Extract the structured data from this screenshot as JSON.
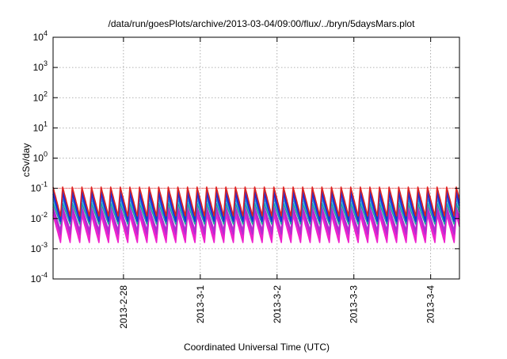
{
  "chart_data": {
    "type": "line",
    "title": "/data/run/goesPlots/archive/2013-03-04/09:00/flux/../bryn/5daysMars.plot",
    "xlabel": "Coordinated Universal Time (UTC)",
    "ylabel": "cSv/day",
    "scale": {
      "y": "log"
    },
    "grid": true,
    "x_range_days": [
      "2013-02-27T02:00",
      "2013-03-04T09:00"
    ],
    "ylim": [
      0.0001,
      10000
    ],
    "x_ticks": [
      {
        "label": "2013-2-28",
        "date": "2013-02-28"
      },
      {
        "label": "2013-3-1",
        "date": "2013-03-01"
      },
      {
        "label": "2013-3-2",
        "date": "2013-03-02"
      },
      {
        "label": "2013-3-3",
        "date": "2013-03-03"
      },
      {
        "label": "2013-3-4",
        "date": "2013-03-04"
      }
    ],
    "y_ticks": [
      {
        "base": "10",
        "exp": "-4",
        "value": 0.0001
      },
      {
        "base": "10",
        "exp": "-3",
        "value": 0.001
      },
      {
        "base": "10",
        "exp": "-2",
        "value": 0.01
      },
      {
        "base": "10",
        "exp": "-1",
        "value": 0.1
      },
      {
        "base": "10",
        "exp": "0",
        "value": 1
      },
      {
        "base": "10",
        "exp": "1",
        "value": 10
      },
      {
        "base": "10",
        "exp": "2",
        "value": 100
      },
      {
        "base": "10",
        "exp": "3",
        "value": 1000
      },
      {
        "base": "10",
        "exp": "4",
        "value": 10000
      }
    ],
    "oscillation_period_hours": 3,
    "series": [
      {
        "color": "#dd2222",
        "peak": 0.11,
        "trough": 0.012
      },
      {
        "color": "#1c2fd8",
        "peak": 0.085,
        "trough": 0.009
      },
      {
        "color": "#1c2fd8",
        "peak": 0.065,
        "trough": 0.008
      },
      {
        "color": "#2a9bd8",
        "peak": 0.045,
        "trough": 0.008
      },
      {
        "color": "#1aa39a",
        "peak": 0.032,
        "trough": 0.0065
      },
      {
        "color": "#b42bd0",
        "peak": 0.024,
        "trough": 0.004
      },
      {
        "color": "#b42bd0",
        "peak": 0.02,
        "trough": 0.003
      },
      {
        "color": "#ee22cc",
        "peak": 0.016,
        "trough": 0.0022
      },
      {
        "color": "#ee22cc",
        "peak": 0.013,
        "trough": 0.0016
      }
    ],
    "threshold_line": {
      "value": 0.1,
      "color": "#ee3333"
    }
  }
}
